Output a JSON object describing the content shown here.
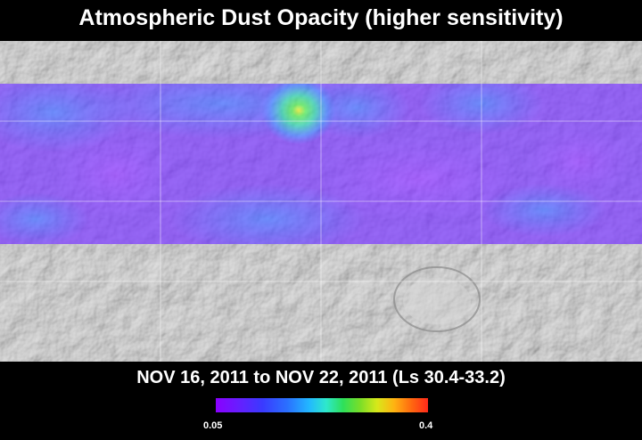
{
  "title": "Atmospheric Dust Opacity (higher sensitivity)",
  "date_range": "NOV 16, 2011 to NOV 22, 2011 (Ls 30.4-33.2)",
  "colorbar": {
    "min_label": "0.05",
    "max_label": "0.4"
  },
  "colors": {
    "background": "#000000",
    "terrain_gray": "#c9c9c9",
    "low_opacity": "#7a2cf0",
    "mid_opacity": "#2f56ff",
    "high_opacity": "#2ee05a"
  }
}
